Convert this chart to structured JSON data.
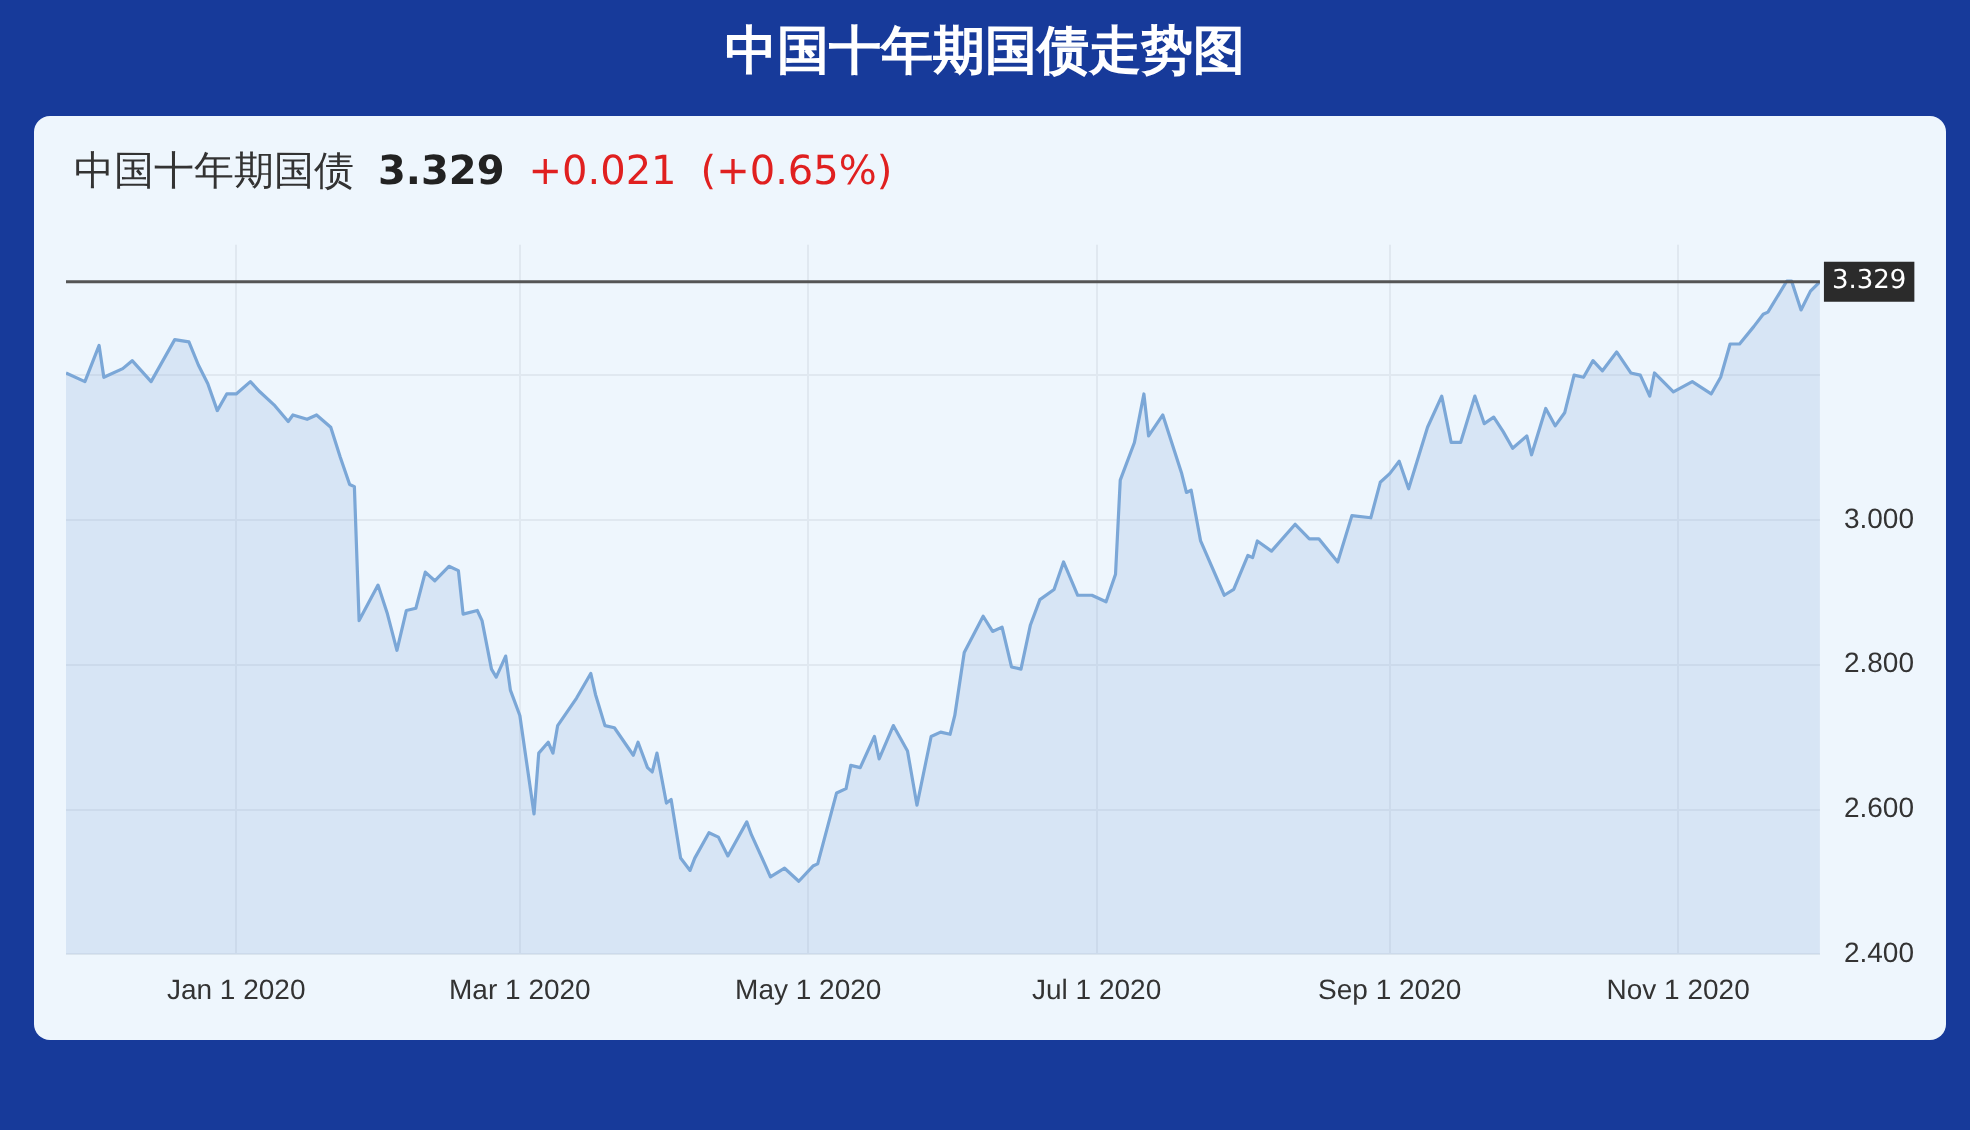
{
  "chart_data": {
    "type": "area",
    "title": "中国十年期国债走势图",
    "subtitle": "中国十年期国债",
    "annotations": [
      "3.329",
      "+0.021",
      "(+0.65%)"
    ],
    "x": [
      "2019-11-26",
      "2019-11-30",
      "2019-12-03",
      "2019-12-04",
      "2019-12-08",
      "2019-12-10",
      "2019-12-14",
      "2019-12-19",
      "2019-12-22",
      "2019-12-24",
      "2019-12-26",
      "2019-12-28",
      "2019-12-30",
      "2020-01-01",
      "2020-01-04",
      "2020-01-06",
      "2020-01-09",
      "2020-01-12",
      "2020-01-13",
      "2020-01-16",
      "2020-01-18",
      "2020-01-21",
      "2020-01-23",
      "2020-01-25",
      "2020-01-26",
      "2020-01-27",
      "2020-01-31",
      "2020-02-02",
      "2020-02-04",
      "2020-02-06",
      "2020-02-08",
      "2020-02-10",
      "2020-02-12",
      "2020-02-15",
      "2020-02-17",
      "2020-02-18",
      "2020-02-21",
      "2020-02-22",
      "2020-02-24",
      "2020-02-25",
      "2020-02-27",
      "2020-02-28",
      "2020-03-01",
      "2020-03-04",
      "2020-03-05",
      "2020-03-07",
      "2020-03-08",
      "2020-03-09",
      "2020-03-13",
      "2020-03-16",
      "2020-03-17",
      "2020-03-19",
      "2020-03-21",
      "2020-03-25",
      "2020-03-26",
      "2020-03-28",
      "2020-03-29",
      "2020-03-30",
      "2020-04-01",
      "2020-04-02",
      "2020-04-04",
      "2020-04-06",
      "2020-04-07",
      "2020-04-10",
      "2020-04-12",
      "2020-04-14",
      "2020-04-18",
      "2020-04-19",
      "2020-04-22",
      "2020-04-23",
      "2020-04-26",
      "2020-04-29",
      "2020-05-02",
      "2020-05-03",
      "2020-05-07",
      "2020-05-09",
      "2020-05-10",
      "2020-05-12",
      "2020-05-15",
      "2020-05-16",
      "2020-05-19",
      "2020-05-22",
      "2020-05-24",
      "2020-05-27",
      "2020-05-29",
      "2020-05-31",
      "2020-06-01",
      "2020-06-03",
      "2020-06-07",
      "2020-06-09",
      "2020-06-11",
      "2020-06-13",
      "2020-06-15",
      "2020-06-17",
      "2020-06-19",
      "2020-06-22",
      "2020-06-24",
      "2020-06-27",
      "2020-06-30",
      "2020-07-03",
      "2020-07-05",
      "2020-07-06",
      "2020-07-09",
      "2020-07-11",
      "2020-07-12",
      "2020-07-15",
      "2020-07-19",
      "2020-07-20",
      "2020-07-21",
      "2020-07-23",
      "2020-07-28",
      "2020-07-30",
      "2020-08-02",
      "2020-08-03",
      "2020-08-04",
      "2020-08-07",
      "2020-08-12",
      "2020-08-15",
      "2020-08-17",
      "2020-08-21",
      "2020-08-24",
      "2020-08-28",
      "2020-08-30",
      "2020-09-01",
      "2020-09-03",
      "2020-09-05",
      "2020-09-09",
      "2020-09-12",
      "2020-09-14",
      "2020-09-16",
      "2020-09-19",
      "2020-09-21",
      "2020-09-23",
      "2020-09-25",
      "2020-09-27",
      "2020-09-30",
      "2020-10-01",
      "2020-10-04",
      "2020-10-06",
      "2020-10-08",
      "2020-10-10",
      "2020-10-12",
      "2020-10-14",
      "2020-10-16",
      "2020-10-19",
      "2020-10-22",
      "2020-10-24",
      "2020-10-26",
      "2020-10-27",
      "2020-10-31",
      "2020-11-04",
      "2020-11-08",
      "2020-11-10",
      "2020-11-12",
      "2020-11-14",
      "2020-11-17",
      "2020-11-19",
      "2020-11-20",
      "2020-11-24",
      "2020-11-25",
      "2020-11-27",
      "2020-11-29",
      "2020-12-01"
    ],
    "series": [
      {
        "color": "#7ba7d7",
        "values": [
          3.203,
          3.191,
          3.241,
          3.197,
          3.209,
          3.22,
          3.191,
          3.249,
          3.246,
          3.214,
          3.188,
          3.151,
          3.174,
          3.174,
          3.191,
          3.177,
          3.159,
          3.136,
          3.145,
          3.139,
          3.145,
          3.128,
          3.087,
          3.049,
          3.046,
          2.861,
          2.91,
          2.87,
          2.82,
          2.875,
          2.878,
          2.928,
          2.916,
          2.936,
          2.93,
          2.87,
          2.875,
          2.861,
          2.794,
          2.783,
          2.812,
          2.765,
          2.73,
          2.594,
          2.678,
          2.693,
          2.678,
          2.716,
          2.754,
          2.788,
          2.759,
          2.716,
          2.713,
          2.675,
          2.693,
          2.658,
          2.652,
          2.678,
          2.609,
          2.614,
          2.533,
          2.516,
          2.533,
          2.568,
          2.562,
          2.536,
          2.583,
          2.565,
          2.522,
          2.507,
          2.519,
          2.501,
          2.522,
          2.525,
          2.623,
          2.629,
          2.661,
          2.658,
          2.701,
          2.67,
          2.716,
          2.681,
          2.606,
          2.701,
          2.707,
          2.704,
          2.73,
          2.817,
          2.867,
          2.846,
          2.852,
          2.797,
          2.794,
          2.855,
          2.89,
          2.904,
          2.942,
          2.896,
          2.896,
          2.887,
          2.925,
          3.055,
          3.107,
          3.174,
          3.116,
          3.145,
          3.064,
          3.038,
          3.041,
          2.971,
          2.896,
          2.904,
          2.951,
          2.948,
          2.971,
          2.957,
          2.994,
          2.974,
          2.974,
          2.942,
          3.006,
          3.003,
          3.052,
          3.064,
          3.081,
          3.043,
          3.128,
          3.171,
          3.107,
          3.107,
          3.171,
          3.133,
          3.142,
          3.122,
          3.099,
          3.116,
          3.09,
          3.154,
          3.13,
          3.148,
          3.2,
          3.197,
          3.22,
          3.206,
          3.232,
          3.203,
          3.2,
          3.171,
          3.203,
          3.177,
          3.191,
          3.174,
          3.197,
          3.243,
          3.243,
          3.267,
          3.284,
          3.287,
          3.33,
          3.33,
          3.29,
          3.316,
          3.329
        ]
      }
    ],
    "xlim": [
      "2019-11-26",
      "2020-12-01"
    ],
    "xticks": [
      {
        "value": "2020-01-01",
        "label": "Jan 1 2020"
      },
      {
        "value": "2020-03-01",
        "label": "Mar 1 2020"
      },
      {
        "value": "2020-05-01",
        "label": "May 1 2020"
      },
      {
        "value": "2020-07-01",
        "label": "Jul 1 2020"
      },
      {
        "value": "2020-09-01",
        "label": "Sep 1 2020"
      },
      {
        "value": "2020-11-01",
        "label": "Nov 1 2020"
      }
    ],
    "ylim": [
      2.4,
      3.38
    ],
    "yticks": [
      {
        "value": 2.4,
        "label": "2.400"
      },
      {
        "value": 2.6,
        "label": "2.600"
      },
      {
        "value": 2.8,
        "label": "2.800"
      },
      {
        "value": 3.0,
        "label": "3.000"
      },
      {
        "value": 3.2,
        "label": null
      }
    ],
    "ref_lines": [
      {
        "axis": "y",
        "value": 3.329,
        "label": "3.329",
        "color": "#555555"
      }
    ],
    "grid": true,
    "marker": "none",
    "line_style": "solid"
  }
}
